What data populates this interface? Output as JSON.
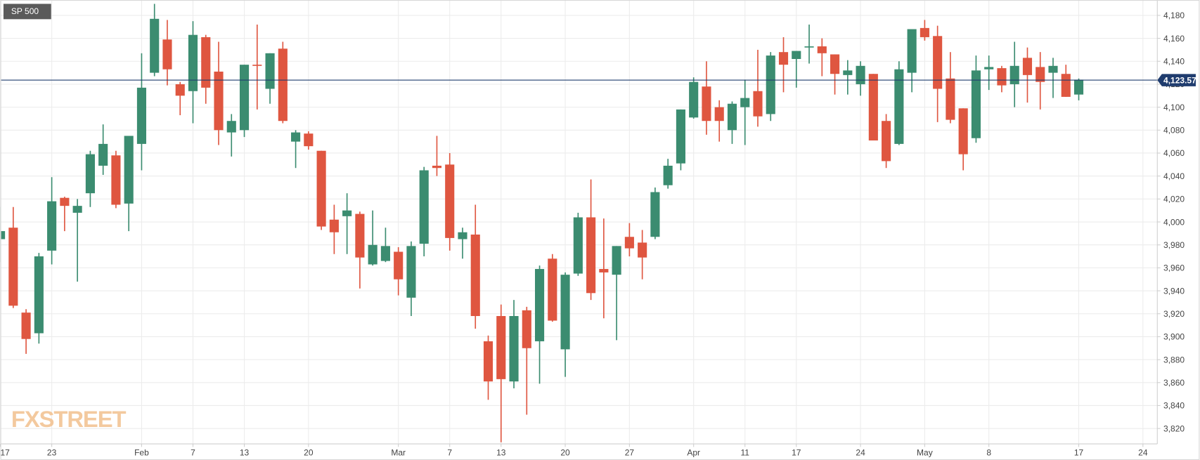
{
  "chart_data": {
    "type": "candlestick",
    "title": "SP 500",
    "watermark": "FXSTREET",
    "up_color": "#3b8c70",
    "down_color": "#df5640",
    "categories": [
      "17",
      null,
      null,
      null,
      "23",
      null,
      null,
      null,
      null,
      null,
      null,
      "Feb",
      null,
      null,
      null,
      "7",
      null,
      null,
      null,
      "13",
      null,
      null,
      null,
      null,
      "20",
      null,
      null,
      null,
      null,
      null,
      null,
      "Mar",
      null,
      null,
      null,
      "7",
      null,
      null,
      null,
      "13",
      null,
      null,
      null,
      null,
      "20",
      null,
      null,
      null,
      null,
      "27",
      null,
      null,
      null,
      null,
      "Apr",
      null,
      null,
      null,
      "11",
      null,
      null,
      null,
      "17",
      null,
      null,
      null,
      null,
      "24",
      null,
      null,
      null,
      null,
      "May",
      null,
      null,
      null,
      null,
      "8",
      null,
      null,
      null,
      null,
      null,
      null,
      "17",
      null,
      null,
      null,
      null,
      "24"
    ],
    "open": [
      3985,
      3995,
      3921,
      3903,
      3975,
      4021,
      4008,
      4025,
      4049,
      4058,
      4016,
      4068,
      4130,
      4159,
      4120,
      4114,
      4161,
      4131,
      4078,
      4080,
      4137,
      4116,
      4151,
      4070,
      4077,
      4062,
      4002,
      4005,
      4007,
      3963,
      3966,
      3974,
      3934,
      3981,
      4049,
      4050,
      3985,
      3989,
      3896,
      3918,
      3861,
      3923,
      3896,
      3968,
      3889,
      3955,
      4004,
      3959,
      3954,
      3987,
      3982,
      3987,
      4032,
      4051,
      4091,
      4118,
      4100,
      4080,
      4100,
      4114,
      4094,
      4148,
      4142,
      4152,
      4153,
      4146,
      4128,
      4120,
      4129,
      4088,
      4068,
      4130,
      4169,
      4162,
      4125,
      4099,
      4073,
      4133,
      4134,
      4120,
      4143,
      4135,
      4130,
      4129,
      4111,
      null,
      null,
      null,
      null,
      null
    ],
    "high": [
      4013,
      4013,
      3924,
      3973,
      4039,
      4022,
      4020,
      4062,
      4085,
      4062,
      4075,
      4147,
      4190,
      4176,
      4122,
      4175,
      4163,
      4157,
      4094,
      4137,
      4172,
      4147,
      4157,
      4080,
      4079,
      4062,
      4015,
      4025,
      4009,
      4010,
      3995,
      3978,
      3983,
      4048,
      4075,
      4060,
      3995,
      4015,
      3901,
      3928,
      3932,
      3926,
      3962,
      3972,
      3956,
      4008,
      4037,
      4003,
      3979,
      3999,
      3993,
      4030,
      4055,
      4098,
      4126,
      4140,
      4106,
      4105,
      4124,
      4150,
      4148,
      4161,
      4149,
      4172,
      4160,
      4146,
      4141,
      4140,
      4129,
      4094,
      4140,
      4168,
      4176,
      4171,
      4148,
      4099,
      4145,
      4145,
      4136,
      4157,
      4152,
      4148,
      4143,
      4137,
      4125,
      null,
      null,
      null,
      null,
      null
    ],
    "low": [
      3965,
      3925,
      3885,
      3894,
      3963,
      3992,
      3948,
      4013,
      4041,
      4012,
      3992,
      4045,
      4127,
      4119,
      4093,
      4086,
      4103,
      4067,
      4057,
      4074,
      4098,
      4103,
      4086,
      4047,
      4063,
      3993,
      3972,
      3972,
      3942,
      3962,
      3965,
      3936,
      3918,
      3970,
      4040,
      3975,
      3968,
      3907,
      3845,
      3808,
      3855,
      3832,
      3859,
      3913,
      3865,
      3953,
      3932,
      3916,
      3897,
      3970,
      3950,
      3985,
      4029,
      4045,
      4090,
      4076,
      4070,
      4068,
      4067,
      4083,
      4088,
      4113,
      4117,
      4138,
      4127,
      4111,
      4111,
      4110,
      4071,
      4047,
      4067,
      4113,
      4158,
      4087,
      4086,
      4045,
      4069,
      4115,
      4113,
      4100,
      4104,
      4098,
      4108,
      4109,
      4106,
      null,
      null,
      null,
      null,
      null
    ],
    "close": [
      3992,
      3927,
      3898,
      3970,
      4018,
      4014,
      4014,
      4059,
      4068,
      4015,
      4075,
      4117,
      4177,
      4133,
      4110,
      4163,
      4117,
      4080,
      4088,
      4137,
      4136,
      4147,
      4088,
      4078,
      4066,
      3996,
      3991,
      4010,
      3969,
      3980,
      3979,
      3950,
      3979,
      4045,
      4047,
      3986,
      3991,
      3918,
      3861,
      3863,
      3918,
      3890,
      3959,
      3914,
      3954,
      4004,
      3938,
      3956,
      3979,
      3977,
      3969,
      4026,
      4049,
      4098,
      4122,
      4088,
      4088,
      4103,
      4108,
      4092,
      4145,
      4137,
      4149,
      4153,
      4147,
      4129,
      4132,
      4136,
      4071,
      4053,
      4133,
      4168,
      4161,
      4116,
      4089,
      4059,
      4132,
      4135,
      4119,
      4136,
      4128,
      4122,
      4136,
      4109,
      4124,
      null,
      null,
      null,
      null,
      null
    ],
    "current_price": {
      "value": 4123.57,
      "label": "4,123.57"
    },
    "current_price_color": "#1f3c6e",
    "ylim": [
      3806.6,
      4193.4
    ],
    "yticks": [
      {
        "value": 3820,
        "label": "3,820"
      },
      {
        "value": 3840,
        "label": "3,840"
      },
      {
        "value": 3860,
        "label": "3,860"
      },
      {
        "value": 3880,
        "label": "3,880"
      },
      {
        "value": 3900,
        "label": "3,900"
      },
      {
        "value": 3920,
        "label": "3,920"
      },
      {
        "value": 3940,
        "label": "3,940"
      },
      {
        "value": 3960,
        "label": "3,960"
      },
      {
        "value": 3980,
        "label": "3,980"
      },
      {
        "value": 4000,
        "label": "4,000"
      },
      {
        "value": 4020,
        "label": "4,020"
      },
      {
        "value": 4040,
        "label": "4,040"
      },
      {
        "value": 4060,
        "label": "4,060"
      },
      {
        "value": 4080,
        "label": "4,080"
      },
      {
        "value": 4100,
        "label": "4,100"
      },
      {
        "value": 4120,
        "label": "4,120"
      },
      {
        "value": 4140,
        "label": "4,140"
      },
      {
        "value": 4160,
        "label": "4,160"
      },
      {
        "value": 4180,
        "label": "4,180"
      }
    ],
    "grid": true
  }
}
